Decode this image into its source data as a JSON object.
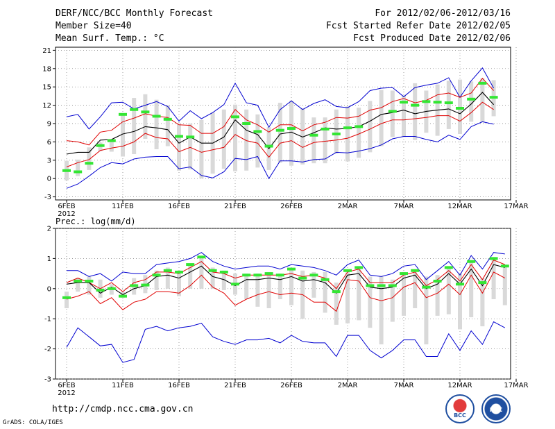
{
  "header": {
    "title": "DERF/NCC/BCC Monthly Forecast",
    "member_size": "Member Size=40",
    "variable": "Mean Surf. Temp.: °C",
    "period": "For 2012/02/06-2012/03/16",
    "fcst_started": "Fcst Started Refer Date 2012/02/05",
    "fcst_produced": "Fcst Produced Date 2012/02/06"
  },
  "footer": {
    "url": "http://cmdp.ncc.cma.gov.cn",
    "grads": "GrADS: COLA/IGES",
    "logo_bcc": "BCC",
    "logo_ncc": "NCC"
  },
  "colors": {
    "green": "#33e633",
    "box": "#d9d9d9",
    "red": "#e00000",
    "blue": "#0000d0",
    "black": "#000000"
  },
  "chart_data": [
    {
      "type": "line",
      "title": "Mean Surf. Temp.: °C",
      "x_ticks": [
        {
          "day": 0,
          "label": "6FEB"
        },
        {
          "day": 5,
          "label": "11FEB"
        },
        {
          "day": 10,
          "label": "16FEB"
        },
        {
          "day": 15,
          "label": "21FEB"
        },
        {
          "day": 20,
          "label": "26FEB"
        },
        {
          "day": 25,
          "label": "2MAR"
        },
        {
          "day": 30,
          "label": "7MAR"
        },
        {
          "day": 35,
          "label": "12MAR"
        },
        {
          "day": 40,
          "label": "17MAR"
        }
      ],
      "year_label": "2012",
      "ylim": [
        -3.5,
        21.5
      ],
      "yticks": [
        -3,
        0,
        3,
        6,
        9,
        12,
        15,
        18,
        21
      ],
      "series": {
        "green_obs": [
          1.3,
          1.1,
          2.5,
          5.4,
          6.2,
          10.5,
          11.3,
          10.9,
          10.2,
          9.7,
          6.9,
          6.8,
          null,
          null,
          null,
          10.1,
          9.0,
          7.7,
          5.3,
          7.9,
          8.2,
          null,
          7.1,
          8.1,
          7.3,
          8.3,
          8.5,
          null,
          null,
          11.0,
          12.5,
          12.0,
          12.6,
          12.5,
          12.4,
          11.5,
          13.0,
          15.6,
          13.3
        ],
        "box_low": [
          -0.3,
          0.4,
          1.4,
          4.5,
          4.4,
          3.6,
          4.0,
          6.5,
          4.8,
          5.3,
          1.3,
          1.5,
          0.0,
          0.8,
          1.6,
          1.2,
          1.3,
          1.8,
          1.4,
          2.6,
          2.1,
          2.3,
          2.5,
          2.5,
          4.1,
          2.8,
          3.4,
          4.3,
          5.3,
          6.8,
          6.8,
          6.3,
          7.5,
          7.0,
          8.1,
          7.3,
          9.3,
          9.2,
          10.2
        ],
        "box_high": [
          2.9,
          3.1,
          5.1,
          5.9,
          6.3,
          10.7,
          13.2,
          13.8,
          12.9,
          12.0,
          9.0,
          9.0,
          9.6,
          10.8,
          11.3,
          12.1,
          11.3,
          10.5,
          8.4,
          12.4,
          12.7,
          11.5,
          10.0,
          10.0,
          11.3,
          11.8,
          11.6,
          12.7,
          14.5,
          14.4,
          13.6,
          15.6,
          14.4,
          15.4,
          16.0,
          16.2,
          15.9,
          16.4,
          16.1
        ],
        "red_upper": [
          6.2,
          6.0,
          5.5,
          7.6,
          7.9,
          9.3,
          9.9,
          10.6,
          10.2,
          10.0,
          8.8,
          8.7,
          7.4,
          7.4,
          8.5,
          11.3,
          9.6,
          8.8,
          7.6,
          8.8,
          8.8,
          7.8,
          8.8,
          9.2,
          10.0,
          9.9,
          10.2,
          11.2,
          11.6,
          12.6,
          13.1,
          12.4,
          12.8,
          13.7,
          14.0,
          13.3,
          14.0,
          16.4,
          14.4
        ],
        "black_mean": [
          4.0,
          4.3,
          4.3,
          6.3,
          6.4,
          7.3,
          7.7,
          8.5,
          8.3,
          8.0,
          5.8,
          6.8,
          5.8,
          5.8,
          6.8,
          9.6,
          7.9,
          7.2,
          4.9,
          7.3,
          7.6,
          6.8,
          7.5,
          8.3,
          8.1,
          8.2,
          8.5,
          9.4,
          10.5,
          10.8,
          11.2,
          10.6,
          11.0,
          11.2,
          11.4,
          10.6,
          12.2,
          14.1,
          12.1
        ],
        "red_lower": [
          1.9,
          2.6,
          3.1,
          4.6,
          5.0,
          5.3,
          6.0,
          7.4,
          6.7,
          6.5,
          4.4,
          5.1,
          4.3,
          4.7,
          5.1,
          7.2,
          6.2,
          5.8,
          3.5,
          5.8,
          6.2,
          5.1,
          5.9,
          6.1,
          6.3,
          6.6,
          7.3,
          8.1,
          9.0,
          9.6,
          9.6,
          9.8,
          10.0,
          10.3,
          10.3,
          9.4,
          10.8,
          12.5,
          11.3
        ],
        "blue_upper": [
          10.1,
          10.5,
          8.1,
          10.1,
          12.4,
          12.5,
          11.4,
          12.0,
          12.6,
          11.8,
          9.4,
          11.1,
          9.8,
          10.8,
          12.1,
          15.6,
          12.4,
          12.0,
          8.4,
          11.3,
          12.7,
          11.3,
          12.3,
          12.9,
          11.8,
          11.6,
          12.6,
          14.4,
          14.8,
          14.9,
          13.4,
          14.9,
          15.3,
          15.6,
          16.5,
          13.3,
          16.0,
          18.1,
          14.8
        ],
        "blue_lower": [
          -1.6,
          -0.9,
          0.4,
          1.8,
          2.6,
          2.4,
          3.2,
          3.5,
          3.6,
          3.6,
          1.6,
          1.9,
          0.5,
          0.1,
          1.1,
          3.3,
          3.1,
          3.6,
          0.0,
          2.9,
          2.9,
          2.7,
          3.1,
          3.2,
          4.3,
          4.2,
          4.5,
          4.9,
          5.5,
          6.5,
          6.9,
          6.9,
          6.4,
          6.0,
          7.1,
          6.4,
          8.5,
          9.3,
          8.9
        ]
      }
    },
    {
      "type": "line",
      "title": "Prec.: log(mm/d)",
      "x_ticks": [
        {
          "day": 0,
          "label": "6FEB"
        },
        {
          "day": 5,
          "label": "11FEB"
        },
        {
          "day": 10,
          "label": "16FEB"
        },
        {
          "day": 15,
          "label": "21FEB"
        },
        {
          "day": 20,
          "label": "26FEB"
        },
        {
          "day": 25,
          "label": "2MAR"
        },
        {
          "day": 30,
          "label": "7MAR"
        },
        {
          "day": 35,
          "label": "12MAR"
        },
        {
          "day": 40,
          "label": "17MAR"
        }
      ],
      "year_label": "2012",
      "ylim": [
        -3,
        2
      ],
      "yticks": [
        -3,
        -2,
        -1,
        0,
        1,
        2
      ],
      "series": {
        "green_obs": [
          -0.3,
          0.25,
          0.25,
          -0.05,
          0.0,
          -0.25,
          0.1,
          0.12,
          0.45,
          0.6,
          0.55,
          0.8,
          1.05,
          0.6,
          0.55,
          0.15,
          0.45,
          0.45,
          0.5,
          0.45,
          0.65,
          0.35,
          0.45,
          0.3,
          -0.1,
          0.6,
          0.7,
          0.1,
          0.1,
          0.1,
          0.5,
          0.6,
          0.05,
          0.25,
          0.7,
          0.15,
          0.9,
          0.2,
          1.0,
          0.75
        ],
        "box_low": [
          -0.65,
          -0.1,
          -0.2,
          -0.3,
          -0.2,
          -0.3,
          -0.2,
          -0.15,
          -0.05,
          0.0,
          -0.25,
          0.0,
          0.0,
          0.0,
          -0.05,
          -0.2,
          -0.35,
          -0.6,
          -0.65,
          -0.35,
          -0.55,
          -1.0,
          -0.3,
          -0.8,
          -1.2,
          -1.15,
          -1.05,
          -1.3,
          -1.85,
          -1.1,
          -0.9,
          -0.65,
          -1.85,
          -0.9,
          -0.85,
          -1.35,
          -0.95,
          -1.25,
          -0.35,
          -0.55
        ],
        "box_high": [
          -0.1,
          0.35,
          0.4,
          0.3,
          0.15,
          -0.1,
          0.35,
          0.45,
          0.6,
          0.7,
          0.6,
          0.8,
          1.0,
          0.7,
          0.6,
          0.5,
          0.5,
          0.5,
          0.55,
          0.5,
          0.65,
          0.6,
          0.55,
          0.55,
          0.2,
          0.6,
          0.75,
          0.4,
          0.4,
          0.3,
          0.55,
          0.55,
          0.4,
          0.45,
          0.75,
          0.5,
          0.95,
          0.35,
          1.05,
          0.8
        ],
        "red_upper": [
          0.2,
          0.35,
          0.2,
          0.0,
          0.2,
          -0.1,
          0.2,
          0.3,
          0.55,
          0.55,
          0.5,
          0.7,
          0.9,
          0.55,
          0.5,
          0.35,
          0.45,
          0.45,
          0.45,
          0.45,
          0.5,
          0.4,
          0.45,
          0.35,
          0.0,
          0.55,
          0.65,
          0.2,
          0.2,
          0.2,
          0.45,
          0.55,
          0.1,
          0.3,
          0.6,
          0.25,
          0.8,
          0.3,
          0.95,
          0.8
        ],
        "black_mean": [
          0.15,
          0.2,
          0.2,
          -0.15,
          0.05,
          -0.2,
          0.0,
          0.1,
          0.4,
          0.45,
          0.35,
          0.55,
          0.75,
          0.4,
          0.3,
          0.1,
          0.3,
          0.3,
          0.35,
          0.3,
          0.4,
          0.25,
          0.3,
          0.2,
          -0.15,
          0.45,
          0.5,
          0.05,
          0.0,
          0.05,
          0.35,
          0.45,
          0.0,
          0.15,
          0.5,
          0.15,
          0.65,
          0.1,
          0.8,
          0.7
        ],
        "red_lower": [
          -0.35,
          -0.25,
          -0.1,
          -0.5,
          -0.3,
          -0.7,
          -0.45,
          -0.35,
          -0.1,
          -0.1,
          -0.15,
          0.1,
          0.45,
          0.05,
          -0.15,
          -0.55,
          -0.35,
          -0.2,
          -0.1,
          -0.2,
          -0.15,
          -0.2,
          -0.45,
          -0.45,
          -0.75,
          0.3,
          0.25,
          -0.3,
          -0.4,
          -0.3,
          0.05,
          0.2,
          -0.3,
          -0.15,
          0.15,
          -0.2,
          0.45,
          -0.15,
          0.55,
          0.35
        ],
        "blue_upper": [
          0.6,
          0.6,
          0.4,
          0.5,
          0.25,
          0.55,
          0.5,
          0.5,
          0.8,
          0.85,
          0.9,
          1.0,
          1.2,
          0.9,
          0.75,
          0.65,
          0.7,
          0.75,
          0.75,
          0.65,
          0.8,
          0.75,
          0.7,
          0.6,
          0.45,
          0.8,
          0.95,
          0.45,
          0.4,
          0.5,
          0.75,
          0.8,
          0.3,
          0.6,
          0.9,
          0.45,
          1.1,
          0.65,
          1.2,
          1.15
        ],
        "blue_lower": [
          -1.95,
          -1.3,
          -1.6,
          -1.9,
          -1.85,
          -2.45,
          -2.35,
          -1.35,
          -1.25,
          -1.4,
          -1.3,
          -1.25,
          -1.15,
          -1.6,
          -1.75,
          -1.85,
          -1.7,
          -1.7,
          -1.65,
          -1.8,
          -1.55,
          -1.75,
          -1.8,
          -1.8,
          -2.25,
          -1.55,
          -1.55,
          -2.05,
          -2.3,
          -2.05,
          -1.7,
          -1.7,
          -2.25,
          -2.25,
          -1.5,
          -2.05,
          -1.4,
          -1.85,
          -1.1,
          -1.3
        ]
      }
    }
  ]
}
